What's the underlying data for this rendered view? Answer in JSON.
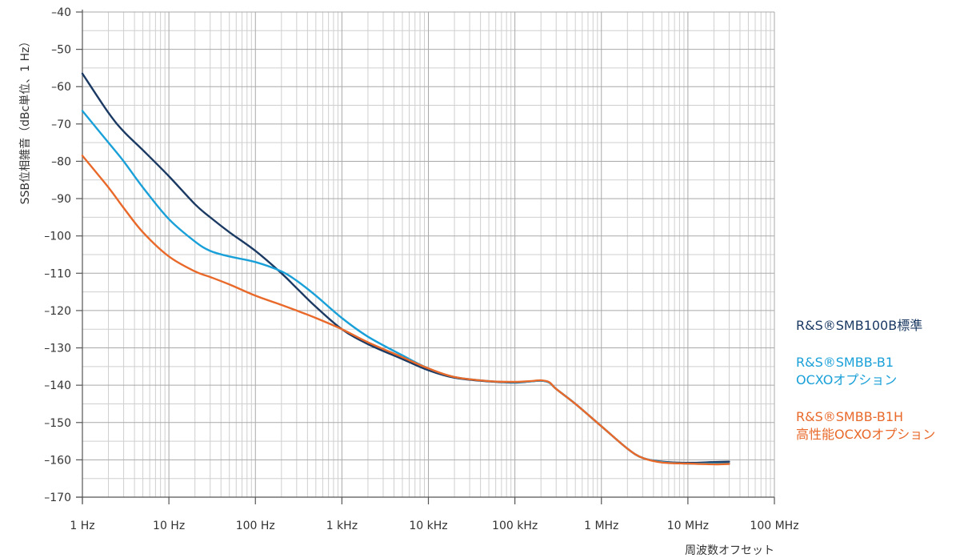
{
  "chart_data": {
    "type": "line",
    "title": "",
    "xlabel": "周波数オフセット",
    "ylabel": "SSB位相雑音（dBc単位、1 Hz）",
    "xscale": "log",
    "xlim": [
      1,
      100000000
    ],
    "ylim": [
      -170,
      -40
    ],
    "grid": true,
    "legend_position": "right",
    "x_ticks": [
      {
        "value": 1,
        "label": "1 Hz"
      },
      {
        "value": 10,
        "label": "10 Hz"
      },
      {
        "value": 100,
        "label": "100 Hz"
      },
      {
        "value": 1000,
        "label": "1 kHz"
      },
      {
        "value": 10000,
        "label": "10 kHz"
      },
      {
        "value": 100000,
        "label": "100 kHz"
      },
      {
        "value": 1000000,
        "label": "1 MHz"
      },
      {
        "value": 10000000,
        "label": "10 MHz"
      },
      {
        "value": 100000000,
        "label": "100 MHz"
      }
    ],
    "y_ticks": [
      {
        "value": -40,
        "label": "–40"
      },
      {
        "value": -50,
        "label": "–50"
      },
      {
        "value": -60,
        "label": "–60"
      },
      {
        "value": -70,
        "label": "–70"
      },
      {
        "value": -80,
        "label": "–80"
      },
      {
        "value": -90,
        "label": "–90"
      },
      {
        "value": -100,
        "label": "–100"
      },
      {
        "value": -110,
        "label": "–110"
      },
      {
        "value": -120,
        "label": "–120"
      },
      {
        "value": -130,
        "label": "–130"
      },
      {
        "value": -140,
        "label": "–140"
      },
      {
        "value": -150,
        "label": "–150"
      },
      {
        "value": -160,
        "label": "–160"
      },
      {
        "value": -170,
        "label": "–170"
      }
    ],
    "series": [
      {
        "name": "R&S®SMB100B標準",
        "label_lines": [
          "R&S®SMB100B標準"
        ],
        "color": "#1b3a63",
        "x": [
          1,
          2,
          3,
          5,
          10,
          20,
          30,
          50,
          100,
          200,
          300,
          500,
          1000,
          2000,
          5000,
          10000,
          20000,
          50000,
          100000,
          150000,
          200000,
          250000,
          300000,
          500000,
          1000000,
          2000000,
          3000000,
          5000000,
          10000000,
          20000000,
          30000000
        ],
        "y": [
          -56.5,
          -67,
          -72,
          -77,
          -84,
          -91.5,
          -95,
          -99,
          -104,
          -110,
          -114,
          -119,
          -125,
          -129,
          -133,
          -136,
          -138,
          -139,
          -139.3,
          -139,
          -138.8,
          -139.3,
          -141,
          -145,
          -151,
          -157,
          -159.5,
          -160.5,
          -160.8,
          -160.6,
          -160.5
        ]
      },
      {
        "name": "R&S®SMBB-B1 OCXOオプション",
        "label_lines": [
          "R&S®SMBB-B1",
          "OCXOオプション"
        ],
        "color": "#1aa0d8",
        "x": [
          1,
          2,
          3,
          5,
          10,
          20,
          30,
          50,
          100,
          200,
          300,
          500,
          1000,
          2000,
          5000,
          10000,
          20000,
          50000,
          100000,
          150000,
          200000,
          250000,
          300000,
          500000,
          1000000,
          2000000,
          3000000,
          5000000,
          10000000,
          20000000,
          30000000
        ],
        "y": [
          -66.5,
          -75,
          -80,
          -87,
          -95.5,
          -101.5,
          -104,
          -105.5,
          -107,
          -109.5,
          -112,
          -116,
          -122,
          -127,
          -132,
          -135.5,
          -137.8,
          -138.9,
          -139.2,
          -139,
          -138.8,
          -139.3,
          -141,
          -145,
          -151,
          -157,
          -159.5,
          -160.6,
          -161,
          -161,
          -161
        ]
      },
      {
        "name": "R&S®SMBB-B1H 高性能OCXOオプション",
        "label_lines": [
          "R&S®SMBB-B1H",
          "高性能OCXOオプション"
        ],
        "color": "#e8692a",
        "x": [
          1,
          2,
          3,
          5,
          10,
          20,
          30,
          50,
          100,
          200,
          300,
          500,
          1000,
          2000,
          5000,
          10000,
          20000,
          50000,
          100000,
          150000,
          200000,
          250000,
          300000,
          500000,
          1000000,
          2000000,
          3000000,
          5000000,
          10000000,
          20000000,
          30000000
        ],
        "y": [
          -78.5,
          -87,
          -92.5,
          -99,
          -105.5,
          -109.5,
          -111,
          -113,
          -116,
          -118.5,
          -120,
          -122,
          -125,
          -128.5,
          -132.5,
          -135.5,
          -137.8,
          -138.9,
          -139.1,
          -138.9,
          -138.7,
          -139.2,
          -141,
          -145,
          -151,
          -157,
          -159.5,
          -160.7,
          -161,
          -161.2,
          -161.1
        ]
      }
    ]
  }
}
